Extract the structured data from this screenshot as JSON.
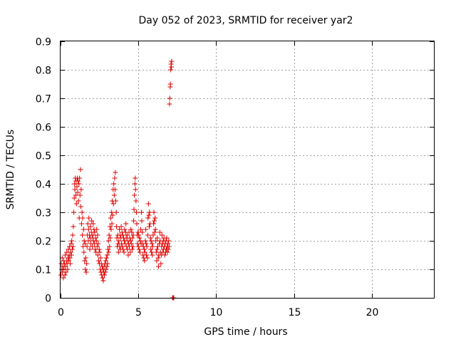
{
  "chart_data": {
    "type": "scatter",
    "title": "Day 052 of 2023, SRMTID for receiver yar2",
    "xlabel": "GPS time / hours",
    "ylabel": "SRMTID / TECUs",
    "xlim": [
      0,
      24
    ],
    "ylim": [
      0,
      0.9
    ],
    "xticks": [
      0,
      5,
      10,
      15,
      20
    ],
    "yticks": [
      0,
      0.1,
      0.2,
      0.3,
      0.4,
      0.5,
      0.6,
      0.7,
      0.8,
      0.9
    ],
    "xtick_labels": [
      "0",
      "5",
      "10",
      "15",
      "20"
    ],
    "ytick_labels": [
      "0",
      "0.1",
      "0.2",
      "0.3",
      "0.4",
      "0.5",
      "0.6",
      "0.7",
      "0.8",
      "0.9"
    ],
    "grid": true,
    "marker": "plus",
    "color": "#e00000",
    "series": [
      {
        "name": "yar2",
        "points": [
          [
            0.02,
            0.08
          ],
          [
            0.05,
            0.12
          ],
          [
            0.08,
            0.1
          ],
          [
            0.1,
            0.14
          ],
          [
            0.12,
            0.09
          ],
          [
            0.15,
            0.11
          ],
          [
            0.18,
            0.07
          ],
          [
            0.2,
            0.13
          ],
          [
            0.22,
            0.1
          ],
          [
            0.25,
            0.12
          ],
          [
            0.28,
            0.08
          ],
          [
            0.3,
            0.15
          ],
          [
            0.32,
            0.11
          ],
          [
            0.35,
            0.09
          ],
          [
            0.38,
            0.13
          ],
          [
            0.4,
            0.16
          ],
          [
            0.42,
            0.12
          ],
          [
            0.45,
            0.1
          ],
          [
            0.48,
            0.14
          ],
          [
            0.5,
            0.17
          ],
          [
            0.52,
            0.13
          ],
          [
            0.55,
            0.15
          ],
          [
            0.58,
            0.18
          ],
          [
            0.6,
            0.14
          ],
          [
            0.62,
            0.12
          ],
          [
            0.65,
            0.16
          ],
          [
            0.68,
            0.19
          ],
          [
            0.7,
            0.15
          ],
          [
            0.72,
            0.2
          ],
          [
            0.75,
            0.17
          ],
          [
            0.78,
            0.22
          ],
          [
            0.8,
            0.18
          ],
          [
            0.82,
            0.25
          ],
          [
            0.85,
            0.3
          ],
          [
            0.88,
            0.35
          ],
          [
            0.9,
            0.4
          ],
          [
            0.92,
            0.38
          ],
          [
            0.95,
            0.42
          ],
          [
            0.98,
            0.36
          ],
          [
            1.0,
            0.41
          ],
          [
            1.02,
            0.33
          ],
          [
            1.05,
            0.39
          ],
          [
            1.08,
            0.42
          ],
          [
            1.1,
            0.37
          ],
          [
            1.12,
            0.41
          ],
          [
            1.15,
            0.34
          ],
          [
            1.18,
            0.4
          ],
          [
            1.2,
            0.28
          ],
          [
            1.22,
            0.42
          ],
          [
            1.25,
            0.36
          ],
          [
            1.28,
            0.45
          ],
          [
            1.3,
            0.32
          ],
          [
            1.32,
            0.38
          ],
          [
            1.35,
            0.26
          ],
          [
            1.38,
            0.3
          ],
          [
            1.4,
            0.22
          ],
          [
            1.42,
            0.28
          ],
          [
            1.45,
            0.18
          ],
          [
            1.48,
            0.24
          ],
          [
            1.5,
            0.16
          ],
          [
            1.52,
            0.2
          ],
          [
            1.55,
            0.13
          ],
          [
            1.58,
            0.19
          ],
          [
            1.6,
            0.1
          ],
          [
            1.62,
            0.14
          ],
          [
            1.65,
            0.09
          ],
          [
            1.68,
            0.12
          ],
          [
            1.7,
            0.18
          ],
          [
            1.72,
            0.22
          ],
          [
            1.75,
            0.26
          ],
          [
            1.78,
            0.2
          ],
          [
            1.8,
            0.24
          ],
          [
            1.82,
            0.28
          ],
          [
            1.85,
            0.22
          ],
          [
            1.88,
            0.17
          ],
          [
            1.9,
            0.21
          ],
          [
            1.92,
            0.25
          ],
          [
            1.95,
            0.19
          ],
          [
            1.98,
            0.23
          ],
          [
            2.0,
            0.27
          ],
          [
            2.02,
            0.21
          ],
          [
            2.05,
            0.18
          ],
          [
            2.08,
            0.22
          ],
          [
            2.1,
            0.26
          ],
          [
            2.12,
            0.2
          ],
          [
            2.15,
            0.24
          ],
          [
            2.18,
            0.19
          ],
          [
            2.2,
            0.23
          ],
          [
            2.22,
            0.17
          ],
          [
            2.25,
            0.21
          ],
          [
            2.28,
            0.16
          ],
          [
            2.3,
            0.2
          ],
          [
            2.32,
            0.24
          ],
          [
            2.35,
            0.18
          ],
          [
            2.38,
            0.22
          ],
          [
            2.4,
            0.15
          ],
          [
            2.42,
            0.19
          ],
          [
            2.45,
            0.13
          ],
          [
            2.48,
            0.17
          ],
          [
            2.5,
            0.12
          ],
          [
            2.52,
            0.16
          ],
          [
            2.55,
            0.1
          ],
          [
            2.58,
            0.14
          ],
          [
            2.6,
            0.09
          ],
          [
            2.62,
            0.12
          ],
          [
            2.65,
            0.08
          ],
          [
            2.68,
            0.11
          ],
          [
            2.7,
            0.07
          ],
          [
            2.72,
            0.1
          ],
          [
            2.75,
            0.06
          ],
          [
            2.78,
            0.09
          ],
          [
            2.8,
            0.11
          ],
          [
            2.82,
            0.08
          ],
          [
            2.85,
            0.12
          ],
          [
            2.88,
            0.09
          ],
          [
            2.9,
            0.13
          ],
          [
            2.92,
            0.1
          ],
          [
            2.95,
            0.14
          ],
          [
            2.98,
            0.11
          ],
          [
            3.0,
            0.15
          ],
          [
            3.02,
            0.12
          ],
          [
            3.05,
            0.17
          ],
          [
            3.08,
            0.2
          ],
          [
            3.1,
            0.16
          ],
          [
            3.12,
            0.22
          ],
          [
            3.15,
            0.18
          ],
          [
            3.18,
            0.25
          ],
          [
            3.2,
            0.21
          ],
          [
            3.22,
            0.28
          ],
          [
            3.25,
            0.24
          ],
          [
            3.28,
            0.3
          ],
          [
            3.3,
            0.26
          ],
          [
            3.32,
            0.34
          ],
          [
            3.35,
            0.29
          ],
          [
            3.38,
            0.38
          ],
          [
            3.4,
            0.33
          ],
          [
            3.42,
            0.4
          ],
          [
            3.45,
            0.36
          ],
          [
            3.48,
            0.42
          ],
          [
            3.5,
            0.38
          ],
          [
            3.52,
            0.44
          ],
          [
            3.55,
            0.34
          ],
          [
            3.58,
            0.3
          ],
          [
            3.6,
            0.25
          ],
          [
            3.62,
            0.21
          ],
          [
            3.65,
            0.18
          ],
          [
            3.68,
            0.22
          ],
          [
            3.7,
            0.19
          ],
          [
            3.72,
            0.16
          ],
          [
            3.75,
            0.2
          ],
          [
            3.78,
            0.24
          ],
          [
            3.8,
            0.18
          ],
          [
            3.82,
            0.22
          ],
          [
            3.85,
            0.17
          ],
          [
            3.88,
            0.21
          ],
          [
            3.9,
            0.25
          ],
          [
            3.92,
            0.19
          ],
          [
            3.95,
            0.23
          ],
          [
            3.98,
            0.18
          ],
          [
            4.0,
            0.22
          ],
          [
            4.02,
            0.17
          ],
          [
            4.05,
            0.21
          ],
          [
            4.08,
            0.16
          ],
          [
            4.1,
            0.2
          ],
          [
            4.12,
            0.24
          ],
          [
            4.15,
            0.19
          ],
          [
            4.18,
            0.23
          ],
          [
            4.2,
            0.26
          ],
          [
            4.22,
            0.21
          ],
          [
            4.25,
            0.18
          ],
          [
            4.28,
            0.22
          ],
          [
            4.3,
            0.17
          ],
          [
            4.32,
            0.2
          ],
          [
            4.35,
            0.15
          ],
          [
            4.38,
            0.19
          ],
          [
            4.4,
            0.23
          ],
          [
            4.42,
            0.18
          ],
          [
            4.45,
            0.21
          ],
          [
            4.48,
            0.16
          ],
          [
            4.5,
            0.2
          ],
          [
            4.52,
            0.24
          ],
          [
            4.55,
            0.19
          ],
          [
            4.58,
            0.23
          ],
          [
            4.6,
            0.17
          ],
          [
            4.62,
            0.21
          ],
          [
            4.65,
            0.18
          ],
          [
            4.68,
            0.22
          ],
          [
            4.7,
            0.27
          ],
          [
            4.72,
            0.31
          ],
          [
            4.75,
            0.36
          ],
          [
            4.78,
            0.4
          ],
          [
            4.8,
            0.42
          ],
          [
            4.82,
            0.38
          ],
          [
            4.85,
            0.34
          ],
          [
            4.88,
            0.3
          ],
          [
            4.9,
            0.26
          ],
          [
            4.92,
            0.22
          ],
          [
            4.95,
            0.19
          ],
          [
            4.98,
            0.23
          ],
          [
            5.0,
            0.18
          ],
          [
            5.02,
            0.22
          ],
          [
            5.05,
            0.17
          ],
          [
            5.08,
            0.21
          ],
          [
            5.1,
            0.16
          ],
          [
            5.12,
            0.2
          ],
          [
            5.15,
            0.24
          ],
          [
            5.18,
            0.19
          ],
          [
            5.2,
            0.3
          ],
          [
            5.22,
            0.27
          ],
          [
            5.25,
            0.23
          ],
          [
            5.28,
            0.19
          ],
          [
            5.3,
            0.15
          ],
          [
            5.32,
            0.18
          ],
          [
            5.35,
            0.14
          ],
          [
            5.38,
            0.17
          ],
          [
            5.4,
            0.13
          ],
          [
            5.42,
            0.16
          ],
          [
            5.45,
            0.2
          ],
          [
            5.48,
            0.24
          ],
          [
            5.5,
            0.19
          ],
          [
            5.52,
            0.15
          ],
          [
            5.55,
            0.18
          ],
          [
            5.58,
            0.14
          ],
          [
            5.6,
            0.22
          ],
          [
            5.62,
            0.28
          ],
          [
            5.65,
            0.33
          ],
          [
            5.68,
            0.29
          ],
          [
            5.7,
            0.25
          ],
          [
            5.72,
            0.3
          ],
          [
            5.75,
            0.26
          ],
          [
            5.78,
            0.21
          ],
          [
            5.8,
            0.17
          ],
          [
            5.82,
            0.2
          ],
          [
            5.85,
            0.16
          ],
          [
            5.88,
            0.19
          ],
          [
            5.9,
            0.15
          ],
          [
            5.92,
            0.18
          ],
          [
            5.95,
            0.22
          ],
          [
            5.98,
            0.26
          ],
          [
            6.0,
            0.3
          ],
          [
            6.02,
            0.27
          ],
          [
            6.05,
            0.23
          ],
          [
            6.08,
            0.28
          ],
          [
            6.1,
            0.24
          ],
          [
            6.12,
            0.2
          ],
          [
            6.15,
            0.16
          ],
          [
            6.18,
            0.13
          ],
          [
            6.2,
            0.17
          ],
          [
            6.22,
            0.21
          ],
          [
            6.25,
            0.18
          ],
          [
            6.28,
            0.14
          ],
          [
            6.3,
            0.11
          ],
          [
            6.32,
            0.15
          ],
          [
            6.35,
            0.19
          ],
          [
            6.38,
            0.23
          ],
          [
            6.4,
            0.2
          ],
          [
            6.42,
            0.16
          ],
          [
            6.45,
            0.12
          ],
          [
            6.48,
            0.15
          ],
          [
            6.5,
            0.18
          ],
          [
            6.52,
            0.22
          ],
          [
            6.55,
            0.19
          ],
          [
            6.58,
            0.16
          ],
          [
            6.6,
            0.2
          ],
          [
            6.62,
            0.17
          ],
          [
            6.65,
            0.21
          ],
          [
            6.68,
            0.18
          ],
          [
            6.7,
            0.15
          ],
          [
            6.72,
            0.19
          ],
          [
            6.75,
            0.16
          ],
          [
            6.78,
            0.2
          ],
          [
            6.8,
            0.17
          ],
          [
            6.82,
            0.21
          ],
          [
            6.85,
            0.18
          ],
          [
            6.88,
            0.16
          ],
          [
            6.9,
            0.19
          ],
          [
            6.92,
            0.17
          ],
          [
            6.95,
            0.2
          ],
          [
            6.98,
            0.18
          ],
          [
            7.0,
            0.68
          ],
          [
            7.02,
            0.7
          ],
          [
            7.05,
            0.74
          ],
          [
            7.06,
            0.75
          ],
          [
            7.08,
            0.8
          ],
          [
            7.1,
            0.82
          ],
          [
            7.12,
            0.81
          ],
          [
            7.14,
            0.83
          ],
          [
            7.2,
            0.0
          ],
          [
            7.22,
            0.0
          ],
          [
            7.25,
            0.0
          ],
          [
            7.28,
            0.0
          ]
        ]
      }
    ]
  }
}
